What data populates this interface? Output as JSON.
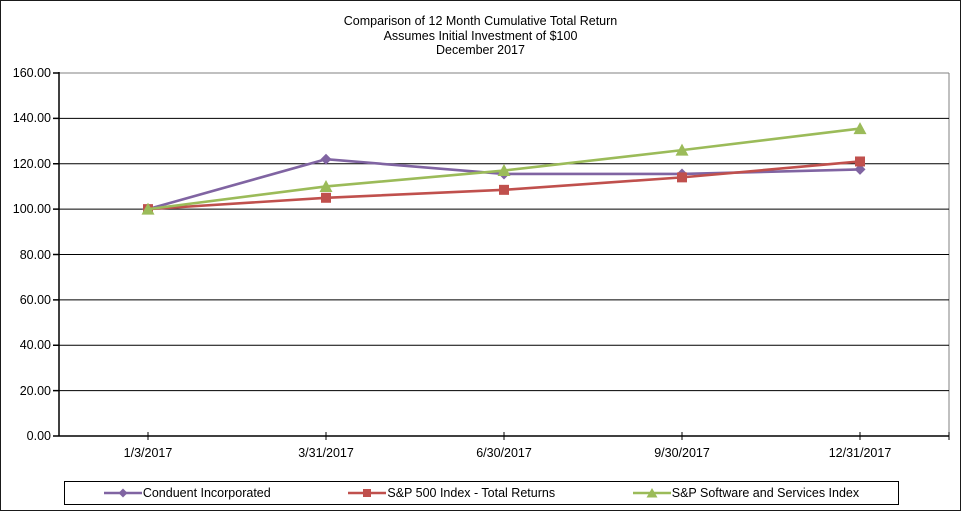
{
  "title": {
    "line1": "Comparison of 12 Month Cumulative Total Return",
    "line2": "Assumes Initial Investment of $100",
    "line3": "December 2017"
  },
  "chart_data": {
    "type": "line",
    "categories": [
      "1/3/2017",
      "3/31/2017",
      "6/30/2017",
      "9/30/2017",
      "12/31/2017"
    ],
    "series": [
      {
        "name": "Conduent Incorporated",
        "color": "#8064A2",
        "marker": "diamond",
        "values": [
          100.0,
          122.0,
          115.5,
          115.5,
          117.5
        ]
      },
      {
        "name": "S&P 500 Index - Total Returns",
        "color": "#C0504D",
        "marker": "square",
        "values": [
          100.0,
          105.0,
          108.5,
          114.0,
          121.0
        ]
      },
      {
        "name": "S&P Software and Services Index",
        "color": "#9BBB59",
        "marker": "triangle",
        "values": [
          100.0,
          110.0,
          117.0,
          126.0,
          135.5
        ]
      }
    ],
    "ylim": [
      0,
      160
    ],
    "ytick_step": 20,
    "ytick_labels": [
      "0.00",
      "20.00",
      "40.00",
      "60.00",
      "80.00",
      "100.00",
      "120.00",
      "140.00",
      "160.00"
    ],
    "grid": "horizontal-on",
    "legend_position": "bottom"
  },
  "colors": {
    "background": "#FFFFFF",
    "text": "#000000",
    "gridline": "#000000",
    "plot_border": "#808080",
    "axis": "#000000"
  }
}
